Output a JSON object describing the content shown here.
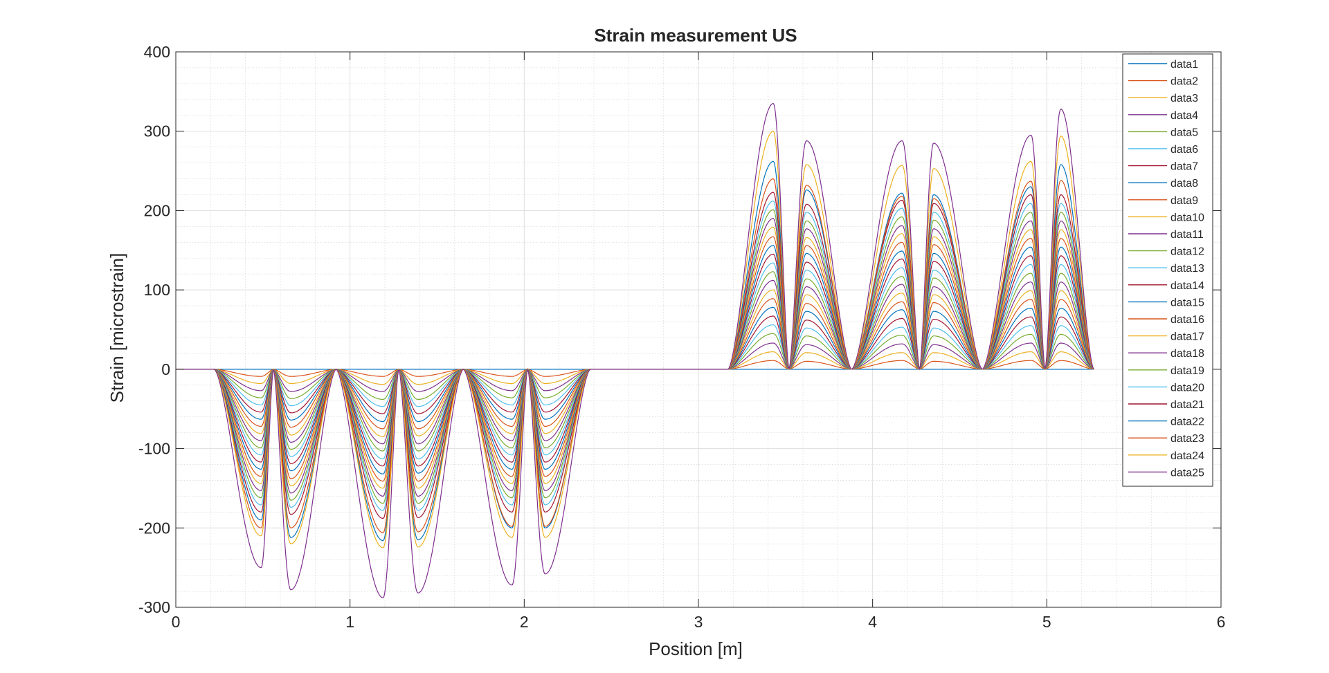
{
  "chart_data": {
    "type": "line",
    "title": "Strain measurement US",
    "xlabel": "Position [m]",
    "ylabel": "Strain [microstrain]",
    "xlim": [
      0,
      6
    ],
    "ylim": [
      -300,
      400
    ],
    "x_ticks": [
      0,
      1,
      2,
      3,
      4,
      5,
      6
    ],
    "y_ticks": [
      -300,
      -200,
      -100,
      0,
      100,
      200,
      300,
      400
    ],
    "grid": true,
    "minor_grid": true,
    "legend_position": "top-right",
    "x_end": 5.27,
    "colors": [
      "#0072BD",
      "#D95319",
      "#EDB120",
      "#7E2F8E",
      "#77AC30",
      "#4DBEEE",
      "#A2142F"
    ],
    "segments": [
      {
        "type": "sag",
        "start": 0.22,
        "end": 0.56,
        "peak_at": 0.49
      },
      {
        "type": "sag",
        "start": 0.56,
        "end": 0.92,
        "peak_at": 0.66
      },
      {
        "type": "sag",
        "start": 0.92,
        "end": 1.28,
        "peak_at": 1.19
      },
      {
        "type": "sag",
        "start": 1.28,
        "end": 1.65,
        "peak_at": 1.39
      },
      {
        "type": "sag",
        "start": 1.65,
        "end": 2.02,
        "peak_at": 1.93
      },
      {
        "type": "sag",
        "start": 2.02,
        "end": 2.38,
        "peak_at": 2.12
      },
      {
        "type": "hump",
        "start": 3.17,
        "end": 3.52,
        "peak_at": 3.43
      },
      {
        "type": "hump",
        "start": 3.52,
        "end": 3.88,
        "peak_at": 3.62
      },
      {
        "type": "hump",
        "start": 3.88,
        "end": 4.27,
        "peak_at": 4.17
      },
      {
        "type": "hump",
        "start": 4.27,
        "end": 4.63,
        "peak_at": 4.35
      },
      {
        "type": "hump",
        "start": 4.63,
        "end": 4.99,
        "peak_at": 4.91
      },
      {
        "type": "hump",
        "start": 4.99,
        "end": 5.27,
        "peak_at": 5.08
      }
    ],
    "series_peaks": [
      {
        "name": "data1",
        "peaks": [
          0,
          0,
          0,
          0,
          0,
          0,
          0,
          0,
          0,
          0,
          0,
          0
        ]
      },
      {
        "name": "data2",
        "peaks": [
          -9,
          -9,
          -9,
          -9,
          -9,
          -9,
          11,
          10,
          11,
          10,
          11,
          11
        ]
      },
      {
        "name": "data3",
        "peaks": [
          -18,
          -18,
          -19,
          -19,
          -18,
          -18,
          22,
          21,
          21,
          21,
          22,
          22
        ]
      },
      {
        "name": "data4",
        "peaks": [
          -27,
          -28,
          -28,
          -28,
          -27,
          -27,
          33,
          31,
          32,
          31,
          33,
          33
        ]
      },
      {
        "name": "data5",
        "peaks": [
          -36,
          -37,
          -38,
          -38,
          -36,
          -36,
          45,
          42,
          43,
          42,
          44,
          44
        ]
      },
      {
        "name": "data6",
        "peaks": [
          -45,
          -46,
          -47,
          -47,
          -45,
          -45,
          56,
          52,
          53,
          52,
          55,
          55
        ]
      },
      {
        "name": "data7",
        "peaks": [
          -54,
          -55,
          -56,
          -56,
          -54,
          -54,
          67,
          62,
          64,
          63,
          66,
          66
        ]
      },
      {
        "name": "data8",
        "peaks": [
          -63,
          -64,
          -66,
          -66,
          -63,
          -63,
          78,
          73,
          75,
          73,
          77,
          77
        ]
      },
      {
        "name": "data9",
        "peaks": [
          -72,
          -73,
          -75,
          -75,
          -72,
          -72,
          89,
          83,
          85,
          84,
          88,
          88
        ]
      },
      {
        "name": "data10",
        "peaks": [
          -81,
          -83,
          -85,
          -84,
          -81,
          -81,
          100,
          94,
          96,
          94,
          99,
          99
        ]
      },
      {
        "name": "data11",
        "peaks": [
          -90,
          -92,
          -94,
          -94,
          -90,
          -90,
          112,
          104,
          107,
          104,
          110,
          110
        ]
      },
      {
        "name": "data12",
        "peaks": [
          -99,
          -101,
          -103,
          -103,
          -99,
          -99,
          123,
          114,
          117,
          115,
          121,
          121
        ]
      },
      {
        "name": "data13",
        "peaks": [
          -108,
          -110,
          -113,
          -113,
          -108,
          -108,
          134,
          125,
          128,
          125,
          132,
          132
        ]
      },
      {
        "name": "data14",
        "peaks": [
          -117,
          -119,
          -122,
          -122,
          -117,
          -117,
          145,
          135,
          139,
          136,
          143,
          143
        ]
      },
      {
        "name": "data15",
        "peaks": [
          -126,
          -128,
          -132,
          -131,
          -126,
          -126,
          156,
          146,
          149,
          146,
          154,
          154
        ]
      },
      {
        "name": "data16",
        "peaks": [
          -135,
          -138,
          -141,
          -141,
          -135,
          -135,
          167,
          156,
          160,
          157,
          165,
          165
        ]
      },
      {
        "name": "data17",
        "peaks": [
          -144,
          -147,
          -150,
          -150,
          -144,
          -144,
          179,
          166,
          171,
          167,
          176,
          176
        ]
      },
      {
        "name": "data18",
        "peaks": [
          -153,
          -156,
          -160,
          -160,
          -153,
          -153,
          190,
          177,
          181,
          177,
          187,
          187
        ]
      },
      {
        "name": "data19",
        "peaks": [
          -162,
          -165,
          -169,
          -169,
          -162,
          -162,
          201,
          187,
          192,
          188,
          198,
          198
        ]
      },
      {
        "name": "data20",
        "peaks": [
          -171,
          -174,
          -178,
          -178,
          -171,
          -171,
          212,
          198,
          203,
          198,
          209,
          209
        ]
      },
      {
        "name": "data21",
        "peaks": [
          -180,
          -183,
          -188,
          -187,
          -180,
          -180,
          223,
          208,
          213,
          209,
          220,
          220
        ]
      },
      {
        "name": "data22",
        "peaks": [
          -190,
          -212,
          -216,
          -215,
          -200,
          -200,
          262,
          226,
          222,
          220,
          230,
          258
        ]
      },
      {
        "name": "data23",
        "peaks": [
          -200,
          -200,
          -206,
          -205,
          -198,
          -198,
          240,
          232,
          218,
          215,
          237,
          238
        ]
      },
      {
        "name": "data24",
        "peaks": [
          -210,
          -220,
          -225,
          -224,
          -212,
          -212,
          300,
          258,
          257,
          253,
          262,
          294
        ]
      },
      {
        "name": "data25",
        "peaks": [
          -250,
          -278,
          -288,
          -282,
          -272,
          -258,
          335,
          288,
          288,
          285,
          295,
          328
        ]
      }
    ]
  }
}
